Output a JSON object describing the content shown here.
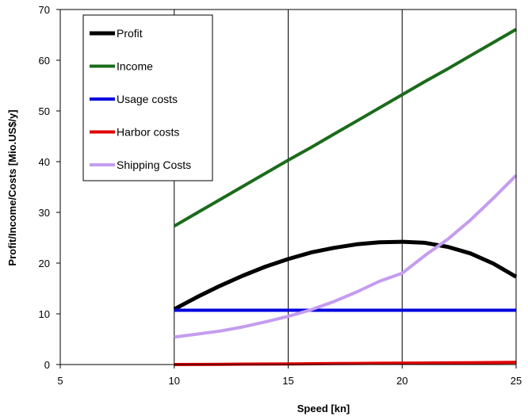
{
  "chart_data": {
    "type": "line",
    "xlabel": "Speed [kn]",
    "ylabel": "Profit/Income/Costs [Mio.US$/y]",
    "xlim": [
      5,
      25
    ],
    "ylim": [
      0,
      70
    ],
    "xticks": [
      5,
      10,
      15,
      20,
      25
    ],
    "yticks": [
      0,
      10,
      20,
      30,
      40,
      50,
      60,
      70
    ],
    "grid": "vertical",
    "legend_position": "top-left",
    "x": [
      10,
      11,
      12,
      13,
      14,
      15,
      16,
      17,
      18,
      19,
      20,
      21,
      22,
      23,
      24,
      25
    ],
    "series": [
      {
        "name": "Profit",
        "color": "#000000",
        "values": [
          10.9,
          13.3,
          15.5,
          17.5,
          19.3,
          20.8,
          22.1,
          23.0,
          23.7,
          24.1,
          24.2,
          24.0,
          23.2,
          21.9,
          19.9,
          17.3
        ]
      },
      {
        "name": "Income",
        "color": "#1b6b1b",
        "values": [
          27.3,
          29.9,
          32.5,
          35.1,
          37.7,
          40.3,
          42.8,
          45.4,
          48.0,
          50.6,
          53.2,
          55.8,
          58.3,
          60.9,
          63.5,
          66.1
        ]
      },
      {
        "name": "Usage costs",
        "color": "#0000dd",
        "values": [
          10.7,
          10.7,
          10.7,
          10.7,
          10.7,
          10.7,
          10.7,
          10.7,
          10.7,
          10.7,
          10.7,
          10.7,
          10.7,
          10.7,
          10.7,
          10.7
        ]
      },
      {
        "name": "Harbor costs",
        "color": "#e00000",
        "values": [
          0.0,
          0.02,
          0.05,
          0.08,
          0.1,
          0.13,
          0.16,
          0.19,
          0.22,
          0.25,
          0.28,
          0.3,
          0.33,
          0.36,
          0.39,
          0.42
        ]
      },
      {
        "name": "Shipping Costs",
        "color": "#c49cf0",
        "values": [
          5.4,
          6.0,
          6.6,
          7.4,
          8.4,
          9.5,
          10.8,
          12.4,
          14.3,
          16.4,
          18.0,
          21.5,
          24.7,
          28.5,
          32.8,
          37.3
        ]
      }
    ]
  }
}
